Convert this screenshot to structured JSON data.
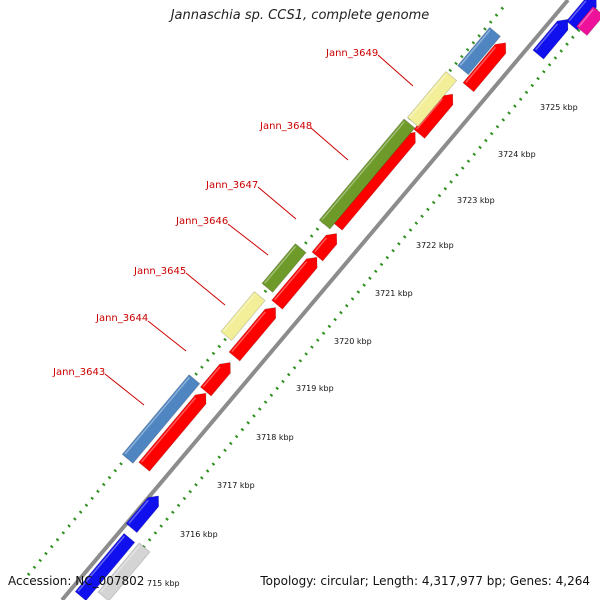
{
  "title": "Jannaschia sp. CCS1, complete genome",
  "footer": {
    "accession": "Accession: NC_007802",
    "summary": "Topology: circular; Length: 4,317,977 bp; Genes: 4,264"
  },
  "colors": {
    "backbone": "#8c8c8c",
    "ruler_dots": "#2f8f1f",
    "label": "#cc0000",
    "leader": "#cc0000",
    "forward_gene": "#ff0000",
    "neighbor_gene": "#1010ee",
    "steel_blue": "#4f86c2",
    "pale_yellow": "#f2ef98",
    "olive_green": "#6e9a2a",
    "light_gray": "#d4d4d4",
    "magenta": "#ee1199"
  },
  "gene_labels": [
    {
      "id": "Jann_3649"
    },
    {
      "id": "Jann_3648"
    },
    {
      "id": "Jann_3647"
    },
    {
      "id": "Jann_3646"
    },
    {
      "id": "Jann_3645"
    },
    {
      "id": "Jann_3644"
    },
    {
      "id": "Jann_3643"
    }
  ],
  "ruler_ticks": [
    {
      "label": "715 kbp"
    },
    {
      "label": "3716 kbp"
    },
    {
      "label": "3717 kbp"
    },
    {
      "label": "3718 kbp"
    },
    {
      "label": "3719 kbp"
    },
    {
      "label": "3720 kbp"
    },
    {
      "label": "3721 kbp"
    },
    {
      "label": "3722 kbp"
    },
    {
      "label": "3723 kbp"
    },
    {
      "label": "3724 kbp"
    },
    {
      "label": "3725 kbp"
    }
  ]
}
